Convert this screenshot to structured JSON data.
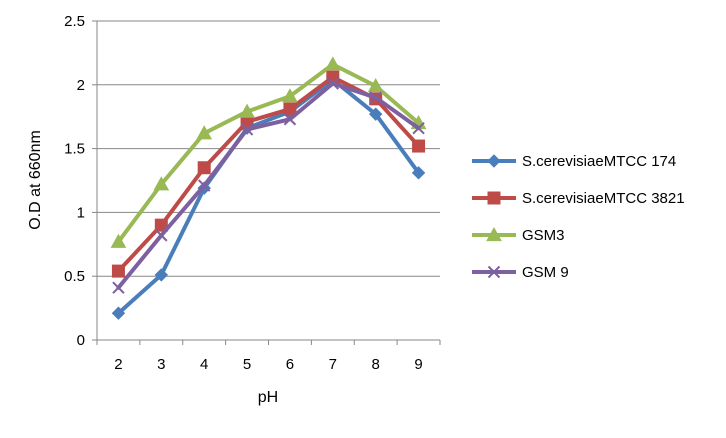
{
  "chart_data": {
    "type": "line",
    "title": "",
    "xlabel": "pH",
    "ylabel": "O.D at 660nm",
    "x": [
      "2",
      "3",
      "4",
      "5",
      "6",
      "7",
      "8",
      "9"
    ],
    "ylim": [
      0,
      2.5
    ],
    "yticks": [
      "0",
      "0.5",
      "1",
      "1.5",
      "2",
      "2.5"
    ],
    "grid": "horizontal",
    "legend_position": "right",
    "series": [
      {
        "name": "S.cerevisiaeMTCC 174",
        "marker": "diamond",
        "color": "#4a7ebb",
        "values": [
          0.21,
          0.51,
          1.19,
          1.66,
          1.79,
          2.04,
          1.77,
          1.31
        ]
      },
      {
        "name": "S.cerevisiaeMTCC 3821",
        "marker": "square",
        "color": "#be4b48",
        "values": [
          0.54,
          0.9,
          1.35,
          1.71,
          1.81,
          2.06,
          1.89,
          1.52
        ]
      },
      {
        "name": "GSM3",
        "marker": "triangle",
        "color": "#98b954",
        "values": [
          0.77,
          1.22,
          1.62,
          1.79,
          1.91,
          2.16,
          1.99,
          1.7
        ]
      },
      {
        "name": "GSM 9",
        "marker": "x",
        "color": "#7d60a0",
        "values": [
          0.41,
          0.82,
          1.21,
          1.65,
          1.73,
          2.01,
          1.9,
          1.66
        ]
      }
    ]
  }
}
